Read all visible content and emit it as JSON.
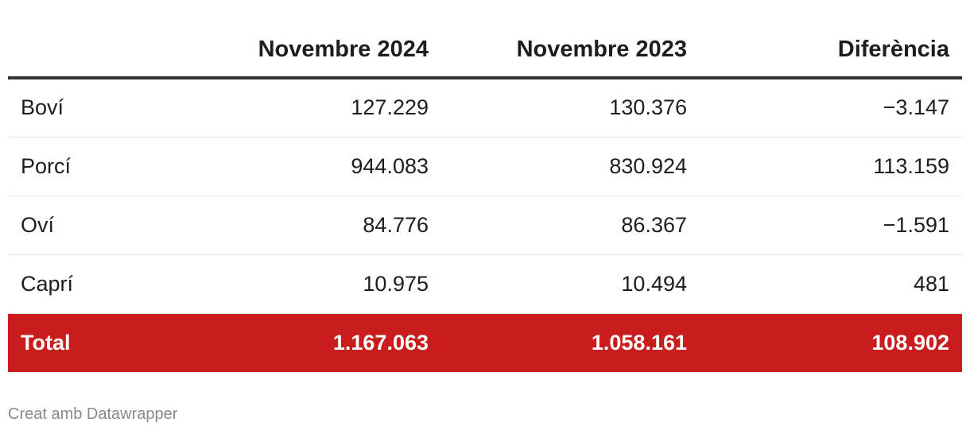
{
  "chart_data": {
    "type": "table",
    "columns": [
      "",
      "Novembre 2024",
      "Novembre 2023",
      "Diferència"
    ],
    "rows": [
      {
        "label": "Boví",
        "values": [
          "127.229",
          "130.376",
          "−3.147"
        ]
      },
      {
        "label": "Porcí",
        "values": [
          "944.083",
          "830.924",
          "113.159"
        ]
      },
      {
        "label": "Oví",
        "values": [
          "84.776",
          "86.367",
          "−1.591"
        ]
      },
      {
        "label": "Caprí",
        "values": [
          "10.975",
          "10.494",
          "481"
        ]
      }
    ],
    "total": {
      "label": "Total",
      "values": [
        "1.167.063",
        "1.058.161",
        "108.902"
      ]
    },
    "colors": {
      "total_background": "#c91d1d",
      "total_text": "#ffffff",
      "header_rule": "#333333",
      "row_rule": "#e6e6e6"
    }
  },
  "footer": {
    "credit": "Creat amb Datawrapper"
  }
}
